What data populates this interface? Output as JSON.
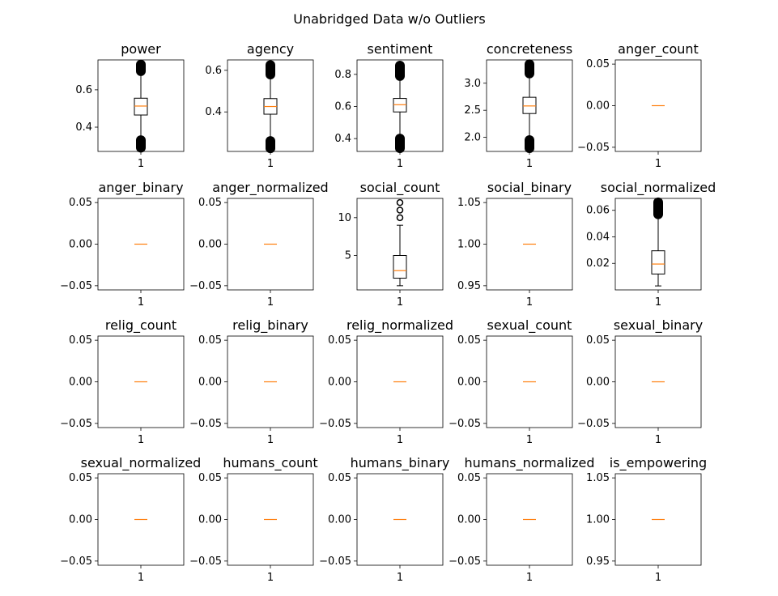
{
  "title": "Unabridged Data w/o Outliers",
  "colors": {
    "median": "#ff7f0e",
    "line": "#000000",
    "background": "#ffffff"
  },
  "chart_data": [
    {
      "type": "box",
      "title": "power",
      "categories": [
        "1"
      ],
      "ylim": [
        0.27,
        0.76
      ],
      "yticks": [
        {
          "v": 0.4,
          "label": "0.4"
        },
        {
          "v": 0.6,
          "label": "0.6"
        }
      ],
      "box": {
        "whislo": 0.33,
        "q1": 0.465,
        "med": 0.513,
        "q3": 0.555,
        "whishi": 0.7
      },
      "fliers_low": [
        0.29,
        0.33
      ],
      "fliers_high": [
        0.7,
        0.735
      ]
    },
    {
      "type": "box",
      "title": "agency",
      "categories": [
        "1"
      ],
      "ylim": [
        0.21,
        0.65
      ],
      "yticks": [
        {
          "v": 0.4,
          "label": "0.4"
        },
        {
          "v": 0.6,
          "label": "0.6"
        }
      ],
      "box": {
        "whislo": 0.26,
        "q1": 0.389,
        "med": 0.426,
        "q3": 0.464,
        "whishi": 0.58
      },
      "fliers_low": [
        0.225,
        0.26
      ],
      "fliers_high": [
        0.58,
        0.625
      ]
    },
    {
      "type": "box",
      "title": "sentiment",
      "categories": [
        "1"
      ],
      "ylim": [
        0.32,
        0.89
      ],
      "yticks": [
        {
          "v": 0.4,
          "label": "0.4"
        },
        {
          "v": 0.6,
          "label": "0.6"
        },
        {
          "v": 0.8,
          "label": "0.8"
        }
      ],
      "box": {
        "whislo": 0.4,
        "q1": 0.566,
        "med": 0.611,
        "q3": 0.65,
        "whishi": 0.79
      },
      "fliers_low": [
        0.34,
        0.4
      ],
      "fliers_high": [
        0.79,
        0.855
      ]
    },
    {
      "type": "box",
      "title": "concreteness",
      "categories": [
        "1"
      ],
      "ylim": [
        1.74,
        3.43
      ],
      "yticks": [
        {
          "v": 2.0,
          "label": "2.0"
        },
        {
          "v": 2.5,
          "label": "2.5"
        },
        {
          "v": 3.0,
          "label": "3.0"
        }
      ],
      "box": {
        "whislo": 1.95,
        "q1": 2.44,
        "med": 2.58,
        "q3": 2.74,
        "whishi": 3.18
      },
      "fliers_low": [
        1.8,
        1.95
      ],
      "fliers_high": [
        3.18,
        3.35
      ]
    },
    {
      "type": "box",
      "title": "anger_count",
      "categories": [
        "1"
      ],
      "ylim": [
        -0.055,
        0.055
      ],
      "yticks": [
        {
          "v": -0.05,
          "label": "−0.05"
        },
        {
          "v": 0,
          "label": "0.00"
        },
        {
          "v": 0.05,
          "label": "0.05"
        }
      ],
      "box": {
        "whislo": 0,
        "q1": 0,
        "med": 0,
        "q3": 0,
        "whishi": 0
      }
    },
    {
      "type": "box",
      "title": "anger_binary",
      "categories": [
        "1"
      ],
      "ylim": [
        -0.055,
        0.055
      ],
      "yticks": [
        {
          "v": -0.05,
          "label": "−0.05"
        },
        {
          "v": 0,
          "label": "0.00"
        },
        {
          "v": 0.05,
          "label": "0.05"
        }
      ],
      "box": {
        "whislo": 0,
        "q1": 0,
        "med": 0,
        "q3": 0,
        "whishi": 0
      }
    },
    {
      "type": "box",
      "title": "anger_normalized",
      "categories": [
        "1"
      ],
      "ylim": [
        -0.055,
        0.055
      ],
      "yticks": [
        {
          "v": -0.05,
          "label": "−0.05"
        },
        {
          "v": 0,
          "label": "0.00"
        },
        {
          "v": 0.05,
          "label": "0.05"
        }
      ],
      "box": {
        "whislo": 0,
        "q1": 0,
        "med": 0,
        "q3": 0,
        "whishi": 0
      }
    },
    {
      "type": "box",
      "title": "social_count",
      "categories": [
        "1"
      ],
      "ylim": [
        0.45,
        12.55
      ],
      "yticks": [
        {
          "v": 5,
          "label": "5"
        },
        {
          "v": 10,
          "label": "10"
        }
      ],
      "box": {
        "whislo": 1,
        "q1": 2,
        "med": 3,
        "q3": 5,
        "whishi": 9
      },
      "fliers": [
        10,
        11,
        12
      ]
    },
    {
      "type": "box",
      "title": "social_binary",
      "categories": [
        "1"
      ],
      "ylim": [
        0.945,
        1.055
      ],
      "yticks": [
        {
          "v": 0.95,
          "label": "0.95"
        },
        {
          "v": 1.0,
          "label": "1.00"
        },
        {
          "v": 1.05,
          "label": "1.05"
        }
      ],
      "box": {
        "whislo": 1,
        "q1": 1,
        "med": 1,
        "q3": 1,
        "whishi": 1
      }
    },
    {
      "type": "box",
      "title": "social_normalized",
      "categories": [
        "1"
      ],
      "ylim": [
        0,
        0.069
      ],
      "yticks": [
        {
          "v": 0.02,
          "label": "0.02"
        },
        {
          "v": 0.04,
          "label": "0.04"
        },
        {
          "v": 0.06,
          "label": "0.06"
        }
      ],
      "box": {
        "whislo": 0.003,
        "q1": 0.012,
        "med": 0.0195,
        "q3": 0.0295,
        "whishi": 0.057
      },
      "fliers_high": [
        0.057,
        0.066
      ]
    },
    {
      "type": "box",
      "title": "relig_count",
      "categories": [
        "1"
      ],
      "ylim": [
        -0.055,
        0.055
      ],
      "yticks": [
        {
          "v": -0.05,
          "label": "−0.05"
        },
        {
          "v": 0,
          "label": "0.00"
        },
        {
          "v": 0.05,
          "label": "0.05"
        }
      ],
      "box": {
        "whislo": 0,
        "q1": 0,
        "med": 0,
        "q3": 0,
        "whishi": 0
      }
    },
    {
      "type": "box",
      "title": "relig_binary",
      "categories": [
        "1"
      ],
      "ylim": [
        -0.055,
        0.055
      ],
      "yticks": [
        {
          "v": -0.05,
          "label": "−0.05"
        },
        {
          "v": 0,
          "label": "0.00"
        },
        {
          "v": 0.05,
          "label": "0.05"
        }
      ],
      "box": {
        "whislo": 0,
        "q1": 0,
        "med": 0,
        "q3": 0,
        "whishi": 0
      }
    },
    {
      "type": "box",
      "title": "relig_normalized",
      "categories": [
        "1"
      ],
      "ylim": [
        -0.055,
        0.055
      ],
      "yticks": [
        {
          "v": -0.05,
          "label": "−0.05"
        },
        {
          "v": 0,
          "label": "0.00"
        },
        {
          "v": 0.05,
          "label": "0.05"
        }
      ],
      "box": {
        "whislo": 0,
        "q1": 0,
        "med": 0,
        "q3": 0,
        "whishi": 0
      }
    },
    {
      "type": "box",
      "title": "sexual_count",
      "categories": [
        "1"
      ],
      "ylim": [
        -0.055,
        0.055
      ],
      "yticks": [
        {
          "v": -0.05,
          "label": "−0.05"
        },
        {
          "v": 0,
          "label": "0.00"
        },
        {
          "v": 0.05,
          "label": "0.05"
        }
      ],
      "box": {
        "whislo": 0,
        "q1": 0,
        "med": 0,
        "q3": 0,
        "whishi": 0
      }
    },
    {
      "type": "box",
      "title": "sexual_binary",
      "categories": [
        "1"
      ],
      "ylim": [
        -0.055,
        0.055
      ],
      "yticks": [
        {
          "v": -0.05,
          "label": "−0.05"
        },
        {
          "v": 0,
          "label": "0.00"
        },
        {
          "v": 0.05,
          "label": "0.05"
        }
      ],
      "box": {
        "whislo": 0,
        "q1": 0,
        "med": 0,
        "q3": 0,
        "whishi": 0
      }
    },
    {
      "type": "box",
      "title": "sexual_normalized",
      "categories": [
        "1"
      ],
      "ylim": [
        -0.055,
        0.055
      ],
      "yticks": [
        {
          "v": -0.05,
          "label": "−0.05"
        },
        {
          "v": 0,
          "label": "0.00"
        },
        {
          "v": 0.05,
          "label": "0.05"
        }
      ],
      "box": {
        "whislo": 0,
        "q1": 0,
        "med": 0,
        "q3": 0,
        "whishi": 0
      }
    },
    {
      "type": "box",
      "title": "humans_count",
      "categories": [
        "1"
      ],
      "ylim": [
        -0.055,
        0.055
      ],
      "yticks": [
        {
          "v": -0.05,
          "label": "−0.05"
        },
        {
          "v": 0,
          "label": "0.00"
        },
        {
          "v": 0.05,
          "label": "0.05"
        }
      ],
      "box": {
        "whislo": 0,
        "q1": 0,
        "med": 0,
        "q3": 0,
        "whishi": 0
      }
    },
    {
      "type": "box",
      "title": "humans_binary",
      "categories": [
        "1"
      ],
      "ylim": [
        -0.055,
        0.055
      ],
      "yticks": [
        {
          "v": -0.05,
          "label": "−0.05"
        },
        {
          "v": 0,
          "label": "0.00"
        },
        {
          "v": 0.05,
          "label": "0.05"
        }
      ],
      "box": {
        "whislo": 0,
        "q1": 0,
        "med": 0,
        "q3": 0,
        "whishi": 0
      }
    },
    {
      "type": "box",
      "title": "humans_normalized",
      "categories": [
        "1"
      ],
      "ylim": [
        -0.055,
        0.055
      ],
      "yticks": [
        {
          "v": -0.05,
          "label": "−0.05"
        },
        {
          "v": 0,
          "label": "0.00"
        },
        {
          "v": 0.05,
          "label": "0.05"
        }
      ],
      "box": {
        "whislo": 0,
        "q1": 0,
        "med": 0,
        "q3": 0,
        "whishi": 0
      }
    },
    {
      "type": "box",
      "title": "is_empowering",
      "categories": [
        "1"
      ],
      "ylim": [
        0.945,
        1.055
      ],
      "yticks": [
        {
          "v": 0.95,
          "label": "0.95"
        },
        {
          "v": 1.0,
          "label": "1.00"
        },
        {
          "v": 1.05,
          "label": "1.05"
        }
      ],
      "box": {
        "whislo": 1,
        "q1": 1,
        "med": 1,
        "q3": 1,
        "whishi": 1
      }
    }
  ]
}
